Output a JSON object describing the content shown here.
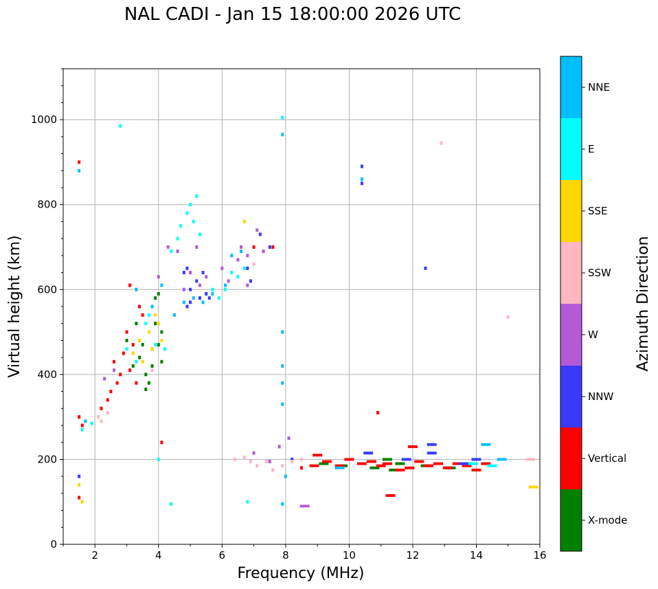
{
  "chart_data": {
    "type": "scatter",
    "title": "NAL CADI - Jan 15 18:00:00 2026 UTC",
    "xlabel": "Frequency (MHz)",
    "ylabel": "Virtual height (km)",
    "xlim": [
      1,
      16
    ],
    "ylim": [
      0,
      1120
    ],
    "xticks": [
      2,
      4,
      6,
      8,
      10,
      12,
      14,
      16
    ],
    "yticks": [
      0,
      200,
      400,
      600,
      800,
      1000
    ],
    "grid": true,
    "colorbar": {
      "label": "Azimuth Direction",
      "categories": [
        {
          "name": "X-mode",
          "color": "#008000"
        },
        {
          "name": "Vertical",
          "color": "#ff0000"
        },
        {
          "name": "NNW",
          "color": "#3a3aff"
        },
        {
          "name": "W",
          "color": "#b45ad6"
        },
        {
          "name": "SSW",
          "color": "#ffb6c1"
        },
        {
          "name": "SSE",
          "color": "#ffd700"
        },
        {
          "name": "E",
          "color": "#00ffff"
        },
        {
          "name": "NNE",
          "color": "#00bfff"
        }
      ]
    },
    "series": [
      {
        "name": "X-mode",
        "points": [
          [
            3.2,
            420
          ],
          [
            3.4,
            440
          ],
          [
            3.6,
            400
          ],
          [
            3.8,
            460
          ],
          [
            3.9,
            580
          ],
          [
            3.9,
            520
          ],
          [
            4.0,
            470
          ],
          [
            4.1,
            500
          ],
          [
            4.1,
            430
          ],
          [
            3.7,
            380
          ],
          [
            3.5,
            470
          ],
          [
            3.3,
            520
          ],
          [
            3.0,
            480
          ],
          [
            9.2,
            190
          ],
          [
            9.8,
            185
          ],
          [
            10.8,
            180
          ],
          [
            11.2,
            200
          ],
          [
            11.4,
            175
          ],
          [
            11.6,
            190
          ],
          [
            12.4,
            185
          ],
          [
            13.2,
            180
          ],
          [
            13.8,
            190
          ],
          [
            3.6,
            365
          ],
          [
            4.0,
            590
          ],
          [
            3.8,
            420
          ]
        ]
      },
      {
        "name": "Vertical",
        "points": [
          [
            1.5,
            900
          ],
          [
            1.5,
            300
          ],
          [
            1.6,
            280
          ],
          [
            1.5,
            110
          ],
          [
            2.2,
            320
          ],
          [
            2.4,
            340
          ],
          [
            2.5,
            360
          ],
          [
            2.7,
            380
          ],
          [
            2.8,
            400
          ],
          [
            2.6,
            430
          ],
          [
            2.9,
            450
          ],
          [
            3.0,
            500
          ],
          [
            3.1,
            410
          ],
          [
            3.2,
            470
          ],
          [
            3.3,
            380
          ],
          [
            3.5,
            540
          ],
          [
            3.4,
            560
          ],
          [
            3.1,
            610
          ],
          [
            4.1,
            240
          ],
          [
            7.0,
            700
          ],
          [
            7.6,
            700
          ],
          [
            9.0,
            210
          ],
          [
            9.3,
            195
          ],
          [
            9.7,
            185
          ],
          [
            10.0,
            200
          ],
          [
            10.4,
            190
          ],
          [
            10.7,
            195
          ],
          [
            11.0,
            185
          ],
          [
            11.2,
            190
          ],
          [
            11.6,
            175
          ],
          [
            11.9,
            180
          ],
          [
            12.0,
            230
          ],
          [
            12.2,
            195
          ],
          [
            12.5,
            185
          ],
          [
            12.8,
            190
          ],
          [
            13.1,
            180
          ],
          [
            13.4,
            190
          ],
          [
            13.7,
            185
          ],
          [
            14.0,
            175
          ],
          [
            14.3,
            190
          ],
          [
            10.9,
            310
          ],
          [
            11.3,
            115
          ],
          [
            8.9,
            185
          ],
          [
            8.5,
            180
          ]
        ]
      },
      {
        "name": "NNW",
        "points": [
          [
            1.5,
            160
          ],
          [
            4.9,
            560
          ],
          [
            5.0,
            570
          ],
          [
            5.3,
            580
          ],
          [
            5.5,
            590
          ],
          [
            5.6,
            580
          ],
          [
            5.2,
            620
          ],
          [
            5.4,
            640
          ],
          [
            5.0,
            600
          ],
          [
            4.9,
            650
          ],
          [
            6.8,
            650
          ],
          [
            6.9,
            620
          ],
          [
            7.2,
            730
          ],
          [
            7.5,
            700
          ],
          [
            10.4,
            850
          ],
          [
            10.4,
            890
          ],
          [
            11.8,
            200
          ],
          [
            12.6,
            215
          ],
          [
            12.6,
            235
          ],
          [
            13.6,
            190
          ],
          [
            14.0,
            200
          ],
          [
            8.2,
            200
          ],
          [
            10.6,
            215
          ],
          [
            12.4,
            650
          ],
          [
            4.8,
            640
          ]
        ]
      },
      {
        "name": "W",
        "points": [
          [
            2.3,
            390
          ],
          [
            2.6,
            410
          ],
          [
            4.0,
            630
          ],
          [
            4.8,
            600
          ],
          [
            5.0,
            640
          ],
          [
            5.3,
            610
          ],
          [
            5.5,
            630
          ],
          [
            6.0,
            650
          ],
          [
            6.2,
            620
          ],
          [
            6.5,
            670
          ],
          [
            6.6,
            700
          ],
          [
            6.8,
            610
          ],
          [
            7.1,
            740
          ],
          [
            7.3,
            690
          ],
          [
            7.0,
            215
          ],
          [
            7.5,
            195
          ],
          [
            7.8,
            230
          ],
          [
            8.1,
            250
          ],
          [
            8.6,
            90
          ],
          [
            5.2,
            700
          ],
          [
            4.6,
            690
          ],
          [
            4.3,
            700
          ],
          [
            6.8,
            680
          ]
        ]
      },
      {
        "name": "SSW",
        "points": [
          [
            2.1,
            300
          ],
          [
            2.2,
            290
          ],
          [
            2.4,
            310
          ],
          [
            6.4,
            200
          ],
          [
            6.7,
            205
          ],
          [
            6.9,
            195
          ],
          [
            7.1,
            185
          ],
          [
            7.4,
            195
          ],
          [
            7.6,
            175
          ],
          [
            7.9,
            185
          ],
          [
            8.2,
            195
          ],
          [
            8.5,
            200
          ],
          [
            12.9,
            945
          ],
          [
            15.0,
            535
          ],
          [
            7.0,
            660
          ],
          [
            3.8,
            410
          ],
          [
            15.7,
            200
          ]
        ]
      },
      {
        "name": "SSE",
        "points": [
          [
            1.5,
            140
          ],
          [
            1.6,
            100
          ],
          [
            3.2,
            450
          ],
          [
            3.5,
            430
          ],
          [
            3.7,
            500
          ],
          [
            3.8,
            460
          ],
          [
            4.0,
            520
          ],
          [
            3.9,
            540
          ],
          [
            6.7,
            760
          ],
          [
            15.8,
            135
          ],
          [
            3.4,
            480
          ],
          [
            4.1,
            480
          ]
        ]
      },
      {
        "name": "E",
        "points": [
          [
            1.6,
            270
          ],
          [
            1.9,
            285
          ],
          [
            2.8,
            985
          ],
          [
            3.0,
            460
          ],
          [
            3.3,
            430
          ],
          [
            3.6,
            520
          ],
          [
            3.7,
            540
          ],
          [
            3.9,
            470
          ],
          [
            4.2,
            460
          ],
          [
            4.4,
            690
          ],
          [
            4.6,
            720
          ],
          [
            4.7,
            750
          ],
          [
            4.9,
            780
          ],
          [
            5.0,
            800
          ],
          [
            5.2,
            820
          ],
          [
            5.1,
            760
          ],
          [
            5.3,
            730
          ],
          [
            5.7,
            600
          ],
          [
            5.9,
            580
          ],
          [
            6.1,
            600
          ],
          [
            6.3,
            640
          ],
          [
            6.5,
            630
          ],
          [
            6.7,
            650
          ],
          [
            4.4,
            95
          ],
          [
            6.8,
            100
          ],
          [
            7.9,
            1005
          ],
          [
            4.0,
            200
          ],
          [
            13.9,
            190
          ],
          [
            14.5,
            185
          ]
        ]
      },
      {
        "name": "NNE",
        "points": [
          [
            1.5,
            880
          ],
          [
            1.7,
            290
          ],
          [
            3.3,
            600
          ],
          [
            3.8,
            560
          ],
          [
            4.1,
            610
          ],
          [
            4.5,
            540
          ],
          [
            4.8,
            570
          ],
          [
            5.1,
            580
          ],
          [
            5.4,
            570
          ],
          [
            5.7,
            590
          ],
          [
            6.1,
            610
          ],
          [
            6.3,
            680
          ],
          [
            6.6,
            690
          ],
          [
            7.9,
            500
          ],
          [
            7.9,
            965
          ],
          [
            7.9,
            420
          ],
          [
            7.9,
            380
          ],
          [
            7.9,
            330
          ],
          [
            7.9,
            95
          ],
          [
            8.0,
            160
          ],
          [
            9.7,
            180
          ],
          [
            14.3,
            235
          ],
          [
            14.8,
            200
          ],
          [
            10.4,
            860
          ]
        ]
      }
    ]
  }
}
